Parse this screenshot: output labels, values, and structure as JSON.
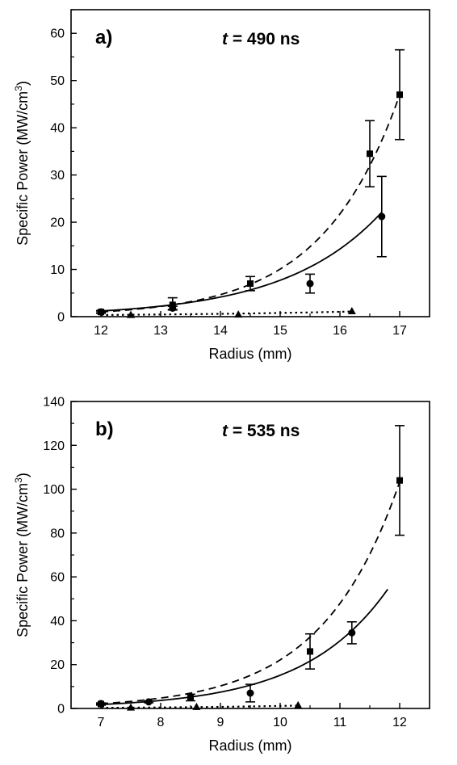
{
  "chart_data": [
    {
      "type": "scatter",
      "panel_label": "a)",
      "annotation": {
        "t_symbol": "t",
        "text": " = 490 ns"
      },
      "xlabel": "Radius (mm)",
      "ylabel_main": "Specific Power (MW/cm",
      "ylabel_sup": "3",
      "ylabel_close": ")",
      "xlim": [
        11.5,
        17.5
      ],
      "ylim": [
        0,
        65
      ],
      "xticks": [
        12,
        13,
        14,
        15,
        16,
        17
      ],
      "yticks": [
        0,
        10,
        20,
        30,
        40,
        50,
        60
      ],
      "tick_labels_x": [
        "12",
        "13",
        "14",
        "15",
        "16",
        "17"
      ],
      "tick_labels_y": [
        "0",
        "10",
        "20",
        "30",
        "40",
        "50",
        "60"
      ],
      "grid": false,
      "series": [
        {
          "marker": "square",
          "fit_style": "dashed",
          "x": [
            12.0,
            13.2,
            14.5,
            16.5,
            17.0
          ],
          "y": [
            1.0,
            2.5,
            7.0,
            34.5,
            47.0
          ],
          "err_low": [
            0.3,
            1.0,
            1.5,
            7.0,
            9.5
          ],
          "err_high": [
            0.3,
            1.5,
            1.5,
            7.0,
            9.5
          ],
          "fit": {
            "x_start": 12.0,
            "x_end": 17.0,
            "a": 1.0,
            "b": 0.77
          }
        },
        {
          "marker": "circle",
          "fit_style": "solid",
          "x": [
            12.0,
            13.2,
            15.5,
            16.7
          ],
          "y": [
            1.0,
            1.8,
            7.0,
            21.2
          ],
          "err_low": [
            0.2,
            0.4,
            2.0,
            8.5
          ],
          "err_high": [
            0.2,
            0.4,
            2.0,
            8.5
          ],
          "fit": {
            "x_start": 12.0,
            "x_end": 16.7,
            "a": 1.2,
            "b": 0.62
          }
        },
        {
          "marker": "triangle",
          "fit_style": "dotted",
          "x": [
            12.5,
            14.3,
            16.2
          ],
          "y": [
            0.4,
            0.5,
            1.2
          ],
          "err_low": [
            0,
            0,
            0
          ],
          "err_high": [
            0,
            0,
            0
          ],
          "fit": {
            "x_start": 12.0,
            "x_end": 16.2,
            "a": 0.35,
            "b": 0.27
          }
        }
      ]
    },
    {
      "type": "scatter",
      "panel_label": "b)",
      "annotation": {
        "t_symbol": "t",
        "text": " = 535 ns"
      },
      "xlabel": "Radius (mm)",
      "ylabel_main": "Specific Power (MW/cm",
      "ylabel_sup": "3",
      "ylabel_close": ")",
      "xlim": [
        6.5,
        12.5
      ],
      "ylim": [
        0,
        140
      ],
      "xticks": [
        7,
        8,
        9,
        10,
        11,
        12
      ],
      "yticks": [
        0,
        20,
        40,
        60,
        80,
        100,
        120,
        140
      ],
      "tick_labels_x": [
        "7",
        "8",
        "9",
        "10",
        "11",
        "12"
      ],
      "tick_labels_y": [
        "0",
        "20",
        "40",
        "60",
        "80",
        "100",
        "120",
        "140"
      ],
      "grid": false,
      "series": [
        {
          "marker": "square",
          "fit_style": "dashed",
          "x": [
            7.0,
            8.5,
            10.5,
            12.0
          ],
          "y": [
            2.0,
            5.0,
            26.0,
            104.0
          ],
          "err_low": [
            0.5,
            1.5,
            8.0,
            25.0
          ],
          "err_high": [
            0.5,
            1.5,
            8.0,
            25.0
          ],
          "fit": {
            "x_start": 7.0,
            "x_end": 12.0,
            "a": 2.2,
            "b": 0.77
          }
        },
        {
          "marker": "circle",
          "fit_style": "solid",
          "x": [
            7.0,
            7.8,
            9.5,
            11.2
          ],
          "y": [
            2.2,
            3.0,
            7.0,
            34.5
          ],
          "err_low": [
            0.3,
            0.4,
            4.0,
            5.0
          ],
          "err_high": [
            0.3,
            0.4,
            4.0,
            5.0
          ],
          "fit": {
            "x_start": 7.0,
            "x_end": 11.8,
            "a": 1.8,
            "b": 0.71
          }
        },
        {
          "marker": "triangle",
          "fit_style": "dotted",
          "x": [
            7.5,
            8.6,
            10.3
          ],
          "y": [
            0.5,
            0.8,
            1.5
          ],
          "err_low": [
            0,
            0,
            0
          ],
          "err_high": [
            0,
            0,
            0
          ],
          "fit": {
            "x_start": 7.0,
            "x_end": 10.3,
            "a": 0.3,
            "b": 0.45
          }
        }
      ]
    }
  ]
}
